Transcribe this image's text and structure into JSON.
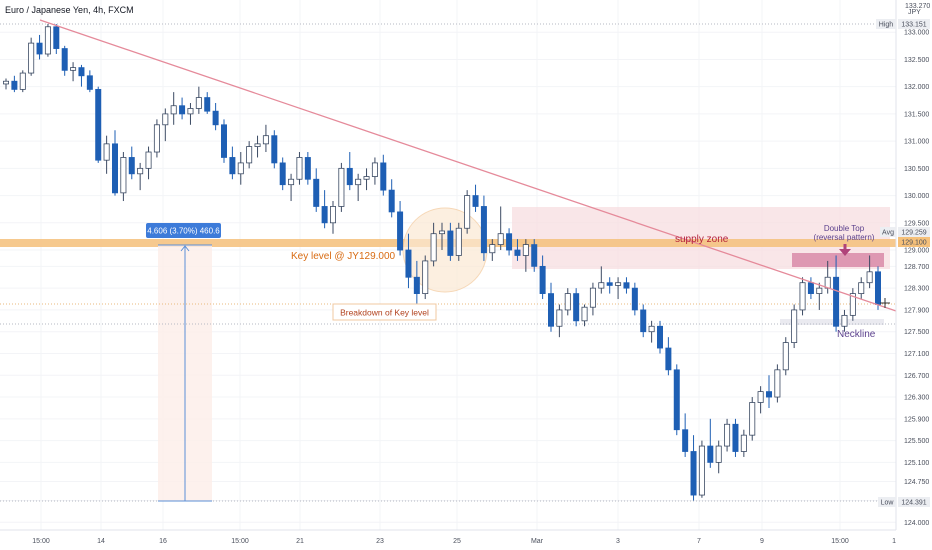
{
  "header": {
    "symbol_title": "Euro / Japanese Yen, 4h, FXCM"
  },
  "price_axis": {
    "currency": "JPY",
    "ticks": [
      "133.000",
      "132.500",
      "132.000",
      "131.500",
      "131.000",
      "130.500",
      "130.000",
      "129.500",
      "129.000",
      "128.700",
      "128.300",
      "127.900",
      "127.500",
      "127.100",
      "126.700",
      "126.300",
      "125.900",
      "125.500",
      "125.100",
      "124.750",
      "124.400",
      "124.000"
    ],
    "badges": [
      {
        "label": "High",
        "value": "133.151"
      },
      {
        "label": "Avg",
        "value": "129.259"
      },
      {
        "label": "",
        "value": "129.100"
      },
      {
        "label": "Low",
        "value": "124.391"
      }
    ],
    "top_tick": "133.270"
  },
  "time_axis": {
    "ticks": [
      "15:00",
      "14",
      "16",
      "15:00",
      "21",
      "23",
      "25",
      "Mar",
      "3",
      "7",
      "9",
      "15:00",
      "1"
    ]
  },
  "annotations": {
    "supply_zone": "supply zone",
    "key_level": "Key level @ JY129.000",
    "breakdown": "Breakdown of Key level",
    "double_top": "Double Top",
    "reversal": "(reversal pattern)",
    "neckline": "Neckline",
    "measure": "4.606 (3.70%) 460.6"
  },
  "colors": {
    "bull_candle": "#ffffff",
    "bear_candle": "#1e5fb4",
    "trendline": "#e58a9a",
    "key_level_band": "#f5c07a",
    "supply_zone": "#f7dde0",
    "double_top_box": "#d98aa8",
    "measure": "#5b8fd6",
    "neckline": "#5a3f8c"
  },
  "chart_data": {
    "type": "candlestick",
    "title": "Euro / Japanese Yen, 4h, FXCM",
    "ylim": [
      123.9,
      133.3
    ],
    "key_levels": {
      "high": 133.151,
      "avg": 129.259,
      "key_level": 129.0,
      "low": 124.391,
      "neckline": 127.55
    },
    "ohlc": [
      [
        132.05,
        132.15,
        131.95,
        132.1
      ],
      [
        132.1,
        132.2,
        131.9,
        131.95
      ],
      [
        131.95,
        132.3,
        131.9,
        132.25
      ],
      [
        132.25,
        132.9,
        132.2,
        132.8
      ],
      [
        132.8,
        132.95,
        132.5,
        132.6
      ],
      [
        132.6,
        133.15,
        132.55,
        133.1
      ],
      [
        133.1,
        133.15,
        132.6,
        132.7
      ],
      [
        132.7,
        132.75,
        132.2,
        132.3
      ],
      [
        132.3,
        132.45,
        132.1,
        132.35
      ],
      [
        132.35,
        132.4,
        132.0,
        132.2
      ],
      [
        132.2,
        132.3,
        131.9,
        131.95
      ],
      [
        131.95,
        132.0,
        130.6,
        130.65
      ],
      [
        130.65,
        131.1,
        130.4,
        130.95
      ],
      [
        130.95,
        131.2,
        130.0,
        130.05
      ],
      [
        130.05,
        130.8,
        129.9,
        130.7
      ],
      [
        130.7,
        130.9,
        130.3,
        130.4
      ],
      [
        130.4,
        130.6,
        130.1,
        130.5
      ],
      [
        130.5,
        130.9,
        130.3,
        130.8
      ],
      [
        130.8,
        131.4,
        130.7,
        131.3
      ],
      [
        131.3,
        131.6,
        131.0,
        131.5
      ],
      [
        131.5,
        131.9,
        131.3,
        131.65
      ],
      [
        131.65,
        131.8,
        131.4,
        131.5
      ],
      [
        131.5,
        131.7,
        131.3,
        131.6
      ],
      [
        131.6,
        132.0,
        131.5,
        131.8
      ],
      [
        131.8,
        131.9,
        131.5,
        131.55
      ],
      [
        131.55,
        131.7,
        131.2,
        131.3
      ],
      [
        131.3,
        131.4,
        130.6,
        130.7
      ],
      [
        130.7,
        130.9,
        130.3,
        130.4
      ],
      [
        130.4,
        130.8,
        130.2,
        130.6
      ],
      [
        130.6,
        131.0,
        130.5,
        130.9
      ],
      [
        130.9,
        131.1,
        130.7,
        130.95
      ],
      [
        130.95,
        131.3,
        130.8,
        131.1
      ],
      [
        131.1,
        131.2,
        130.5,
        130.6
      ],
      [
        130.6,
        130.7,
        130.1,
        130.2
      ],
      [
        130.2,
        130.4,
        129.9,
        130.3
      ],
      [
        130.3,
        130.8,
        130.2,
        130.7
      ],
      [
        130.7,
        130.8,
        130.2,
        130.3
      ],
      [
        130.3,
        130.5,
        129.7,
        129.8
      ],
      [
        129.8,
        130.1,
        129.4,
        129.5
      ],
      [
        129.5,
        129.9,
        129.3,
        129.8
      ],
      [
        129.8,
        130.6,
        129.7,
        130.5
      ],
      [
        130.5,
        130.8,
        130.1,
        130.2
      ],
      [
        130.2,
        130.4,
        129.9,
        130.3
      ],
      [
        130.3,
        130.5,
        130.1,
        130.35
      ],
      [
        130.35,
        130.7,
        130.2,
        130.6
      ],
      [
        130.6,
        130.75,
        130.0,
        130.1
      ],
      [
        130.1,
        130.3,
        129.6,
        129.7
      ],
      [
        129.7,
        129.9,
        128.9,
        129.0
      ],
      [
        129.0,
        129.3,
        128.3,
        128.5
      ],
      [
        128.5,
        128.8,
        128.0,
        128.2
      ],
      [
        128.2,
        128.9,
        128.1,
        128.8
      ],
      [
        128.8,
        129.5,
        128.7,
        129.3
      ],
      [
        129.3,
        129.5,
        129.0,
        129.35
      ],
      [
        129.35,
        129.5,
        128.8,
        128.9
      ],
      [
        128.9,
        129.5,
        128.8,
        129.4
      ],
      [
        129.4,
        130.1,
        129.3,
        130.0
      ],
      [
        130.0,
        130.2,
        129.7,
        129.8
      ],
      [
        129.8,
        130.0,
        128.8,
        128.95
      ],
      [
        128.95,
        129.2,
        128.8,
        129.1
      ],
      [
        129.1,
        129.8,
        129.0,
        129.3
      ],
      [
        129.3,
        129.4,
        128.9,
        129.0
      ],
      [
        129.0,
        129.2,
        128.8,
        128.9
      ],
      [
        128.9,
        129.2,
        128.6,
        129.1
      ],
      [
        129.1,
        129.2,
        128.6,
        128.7
      ],
      [
        128.7,
        128.9,
        128.1,
        128.2
      ],
      [
        128.2,
        128.4,
        127.5,
        127.6
      ],
      [
        127.6,
        128.0,
        127.4,
        127.9
      ],
      [
        127.9,
        128.3,
        127.8,
        128.2
      ],
      [
        128.2,
        128.3,
        127.6,
        127.7
      ],
      [
        127.7,
        128.0,
        127.6,
        127.95
      ],
      [
        127.95,
        128.4,
        127.8,
        128.3
      ],
      [
        128.3,
        128.7,
        128.2,
        128.4
      ],
      [
        128.4,
        128.5,
        128.2,
        128.35
      ],
      [
        128.35,
        128.5,
        128.1,
        128.4
      ],
      [
        128.4,
        128.5,
        128.2,
        128.3
      ],
      [
        128.3,
        128.4,
        127.8,
        127.9
      ],
      [
        127.9,
        128.0,
        127.4,
        127.5
      ],
      [
        127.5,
        127.7,
        127.3,
        127.6
      ],
      [
        127.6,
        127.7,
        127.1,
        127.2
      ],
      [
        127.2,
        127.4,
        126.7,
        126.8
      ],
      [
        126.8,
        126.9,
        125.6,
        125.7
      ],
      [
        125.7,
        126.0,
        125.2,
        125.3
      ],
      [
        125.3,
        125.6,
        124.4,
        124.5
      ],
      [
        124.5,
        125.5,
        124.45,
        125.4
      ],
      [
        125.4,
        125.9,
        125.0,
        125.1
      ],
      [
        125.1,
        125.5,
        124.9,
        125.4
      ],
      [
        125.4,
        125.9,
        125.3,
        125.8
      ],
      [
        125.8,
        125.9,
        125.2,
        125.3
      ],
      [
        125.3,
        125.7,
        125.2,
        125.6
      ],
      [
        125.6,
        126.3,
        125.5,
        126.2
      ],
      [
        126.2,
        126.5,
        126.0,
        126.4
      ],
      [
        126.4,
        126.7,
        126.1,
        126.3
      ],
      [
        126.3,
        126.9,
        126.2,
        126.8
      ],
      [
        126.8,
        127.4,
        126.7,
        127.3
      ],
      [
        127.3,
        128.0,
        127.2,
        127.9
      ],
      [
        127.9,
        128.5,
        127.8,
        128.4
      ],
      [
        128.4,
        128.5,
        128.1,
        128.2
      ],
      [
        128.2,
        128.4,
        127.9,
        128.3
      ],
      [
        128.3,
        128.8,
        128.2,
        128.5
      ],
      [
        128.5,
        128.9,
        127.5,
        127.6
      ],
      [
        127.6,
        127.9,
        127.5,
        127.8
      ],
      [
        127.8,
        128.3,
        127.7,
        128.2
      ],
      [
        128.2,
        128.5,
        128.1,
        128.4
      ],
      [
        128.4,
        128.9,
        128.3,
        128.6
      ],
      [
        128.6,
        128.7,
        127.9,
        128.0
      ]
    ]
  }
}
